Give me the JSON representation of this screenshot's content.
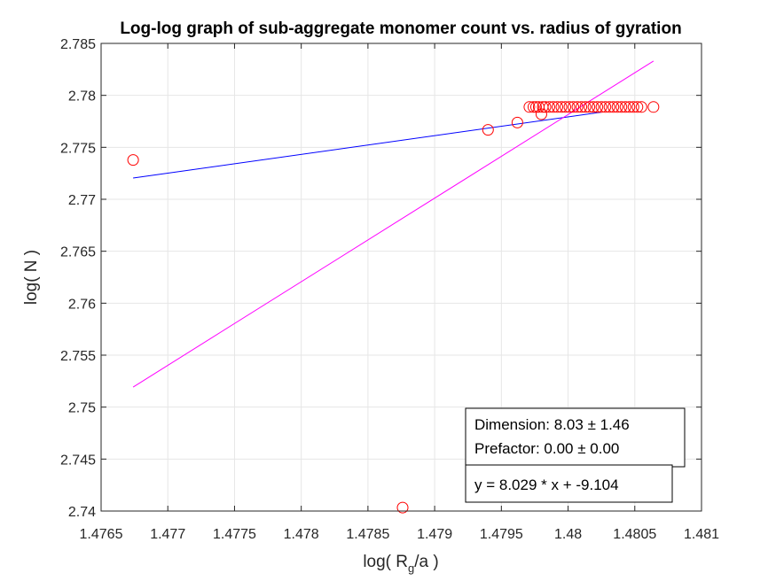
{
  "chart_data": {
    "type": "scatter",
    "title": "Log-log graph of sub-aggregate monomer count vs. radius of gyration",
    "xlabel": {
      "base": "log( R",
      "sub": "g",
      "rest": "/a )"
    },
    "ylabel": "log( N )",
    "xlim": [
      1.4765,
      1.481
    ],
    "ylim": [
      2.74,
      2.785
    ],
    "xticks": [
      1.4765,
      1.477,
      1.4775,
      1.478,
      1.4785,
      1.479,
      1.4795,
      1.48,
      1.4805,
      1.481
    ],
    "xtick_labels": [
      "1.4765",
      "1.477",
      "1.4775",
      "1.478",
      "1.4785",
      "1.479",
      "1.4795",
      "1.48",
      "1.4805",
      "1.481"
    ],
    "yticks": [
      2.74,
      2.745,
      2.75,
      2.755,
      2.76,
      2.765,
      2.77,
      2.775,
      2.78,
      2.785
    ],
    "ytick_labels": [
      "2.74",
      "2.745",
      "2.75",
      "2.755",
      "2.76",
      "2.765",
      "2.77",
      "2.775",
      "2.78",
      "2.785"
    ],
    "grid": true,
    "colors": {
      "markers": "#ff0000",
      "fit_blue": "#0000ff",
      "fit_magenta": "#ff00ff"
    },
    "points": [
      [
        1.47674,
        2.77378
      ],
      [
        1.47876,
        2.74033
      ],
      [
        1.4794,
        2.77668
      ],
      [
        1.47962,
        2.77738
      ],
      [
        1.47971,
        2.77888
      ],
      [
        1.47974,
        2.77888
      ],
      [
        1.47976,
        2.77888
      ],
      [
        1.47978,
        2.77888
      ],
      [
        1.4798,
        2.77818
      ],
      [
        1.47981,
        2.77888
      ],
      [
        1.47983,
        2.77888
      ],
      [
        1.47986,
        2.77888
      ],
      [
        1.47989,
        2.77888
      ],
      [
        1.47992,
        2.77888
      ],
      [
        1.47995,
        2.77888
      ],
      [
        1.47998,
        2.77888
      ],
      [
        1.48001,
        2.77888
      ],
      [
        1.48004,
        2.77888
      ],
      [
        1.48007,
        2.77888
      ],
      [
        1.4801,
        2.77888
      ],
      [
        1.48013,
        2.77888
      ],
      [
        1.48016,
        2.77888
      ],
      [
        1.48019,
        2.77888
      ],
      [
        1.48022,
        2.77888
      ],
      [
        1.48025,
        2.77888
      ],
      [
        1.48028,
        2.77888
      ],
      [
        1.48031,
        2.77888
      ],
      [
        1.48034,
        2.77888
      ],
      [
        1.48037,
        2.77888
      ],
      [
        1.4804,
        2.77888
      ],
      [
        1.48043,
        2.77888
      ],
      [
        1.48046,
        2.77888
      ],
      [
        1.48049,
        2.77888
      ],
      [
        1.48052,
        2.77888
      ],
      [
        1.48055,
        2.77888
      ],
      [
        1.48064,
        2.77888
      ]
    ],
    "lines": [
      {
        "color": "#0000ff",
        "x": [
          1.47674,
          1.48025
        ],
        "y": [
          2.77205,
          2.77838
        ]
      },
      {
        "color": "#ff00ff",
        "x": [
          1.47674,
          1.48064
        ],
        "y": [
          2.75193,
          2.7833
        ]
      }
    ],
    "annotations": {
      "dimension": "Dimension: 8.03 ± 1.46",
      "prefactor": "Prefactor: 0.00 ± 0.00",
      "equation": "y = 8.029 * x + -9.104"
    }
  }
}
